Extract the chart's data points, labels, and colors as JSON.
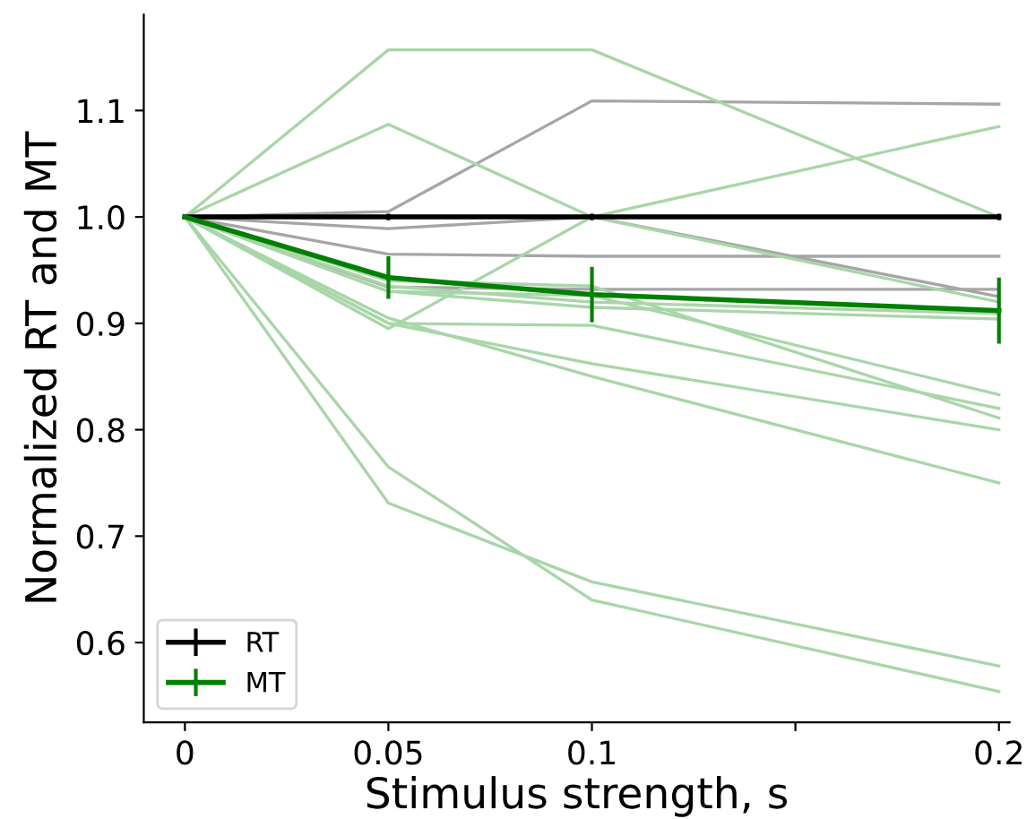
{
  "chart_data": {
    "type": "line",
    "xlabel": "Stimulus strength, s",
    "ylabel": "Normalized RT and MT",
    "x": [
      0,
      0.05,
      0.1,
      0.2
    ],
    "xlim": [
      -0.0101,
      0.2026
    ],
    "xticks": [
      0,
      0.05,
      0.1,
      {
        "value": 0.15,
        "label": null
      },
      0.2
    ],
    "ylim": [
      0.525,
      1.19
    ],
    "yticks": [
      0.6,
      0.7,
      0.8,
      0.9,
      {
        "value": 1,
        "label": "1.0"
      },
      1.1
    ],
    "grid": false,
    "legend": "bottom left",
    "marker": "none",
    "line_style": "solid",
    "series": [
      {
        "color": "#a6a6a6",
        "values": [
          1,
          1.005,
          1.109,
          1.106
        ]
      },
      {
        "color": "#a6a6a6",
        "values": [
          1,
          0.989,
          1.0,
          0.925
        ]
      },
      {
        "color": "#a6a6a6",
        "values": [
          1,
          0.965,
          0.963,
          0.963
        ]
      },
      {
        "color": "#a6a6a6",
        "values": [
          1,
          0.934,
          0.932,
          0.932
        ]
      },
      {
        "color": "#a9d6a9",
        "values": [
          1,
          1.157,
          1.157,
          1.0
        ]
      },
      {
        "color": "#a9d6a9",
        "values": [
          1,
          1.087,
          1.0,
          0.92
        ]
      },
      {
        "color": "#a9d6a9",
        "values": [
          1,
          0.895,
          1.0,
          1.085
        ]
      },
      {
        "color": "#a9d6a9",
        "values": [
          1,
          0.765,
          0.64,
          0.554
        ]
      },
      {
        "color": "#a9d6a9",
        "values": [
          1,
          0.731,
          0.657,
          0.578
        ]
      },
      {
        "color": "#a9d6a9",
        "values": [
          1,
          0.9,
          0.862,
          0.8
        ]
      },
      {
        "color": "#a9d6a9",
        "values": [
          1,
          0.905,
          0.85,
          0.75
        ]
      },
      {
        "color": "#a9d6a9",
        "values": [
          1,
          0.9,
          0.898,
          0.82
        ]
      },
      {
        "color": "#a9d6a9",
        "values": [
          1,
          0.93,
          0.926,
          0.833
        ]
      },
      {
        "color": "#a9d6a9",
        "values": [
          1,
          0.935,
          0.92,
          0.909
        ]
      },
      {
        "color": "#a9d6a9",
        "values": [
          1,
          0.93,
          0.915,
          0.904
        ]
      },
      {
        "color": "#a9d6a9",
        "values": [
          1,
          0.94,
          0.935,
          0.811
        ]
      },
      {
        "name": "RT",
        "color": "#000000",
        "values": [
          1,
          1,
          1,
          1
        ],
        "errors": [
          null,
          0.003,
          0.003,
          0.003
        ]
      },
      {
        "name": "MT",
        "color": "#008000",
        "values": [
          1,
          0.943,
          0.927,
          0.912
        ],
        "errors": [
          null,
          0.02,
          0.026,
          0.031
        ]
      }
    ]
  }
}
